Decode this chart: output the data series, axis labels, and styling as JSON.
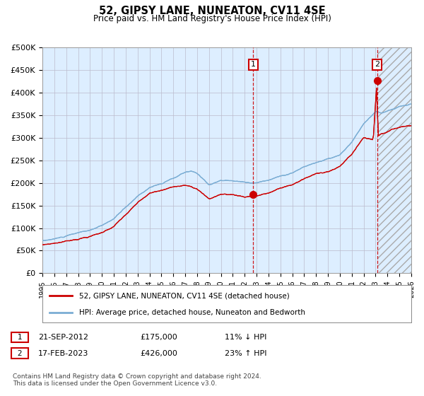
{
  "title": "52, GIPSY LANE, NUNEATON, CV11 4SE",
  "subtitle": "Price paid vs. HM Land Registry's House Price Index (HPI)",
  "ylim": [
    0,
    500000
  ],
  "yticks": [
    0,
    50000,
    100000,
    150000,
    200000,
    250000,
    300000,
    350000,
    400000,
    450000,
    500000
  ],
  "ytick_labels": [
    "£0",
    "£50K",
    "£100K",
    "£150K",
    "£200K",
    "£250K",
    "£300K",
    "£350K",
    "£400K",
    "£450K",
    "£500K"
  ],
  "hpi_color": "#7aadd4",
  "price_color": "#cc0000",
  "background_plot": "#ddeeff",
  "background_fig": "#ffffff",
  "grid_color": "#bbbbcc",
  "sale1_year": 2012.72,
  "sale1_price": 175000,
  "sale1_label": "1",
  "sale2_year": 2023.12,
  "sale2_price": 426000,
  "sale2_label": "2",
  "legend_line1": "52, GIPSY LANE, NUNEATON, CV11 4SE (detached house)",
  "legend_line2": "HPI: Average price, detached house, Nuneaton and Bedworth",
  "annotation1_date": "21-SEP-2012",
  "annotation1_price": "£175,000",
  "annotation1_hpi": "11% ↓ HPI",
  "annotation2_date": "17-FEB-2023",
  "annotation2_price": "£426,000",
  "annotation2_hpi": "23% ↑ HPI",
  "footer": "Contains HM Land Registry data © Crown copyright and database right 2024.\nThis data is licensed under the Open Government Licence v3.0.",
  "xstart": 1995,
  "xend": 2026
}
